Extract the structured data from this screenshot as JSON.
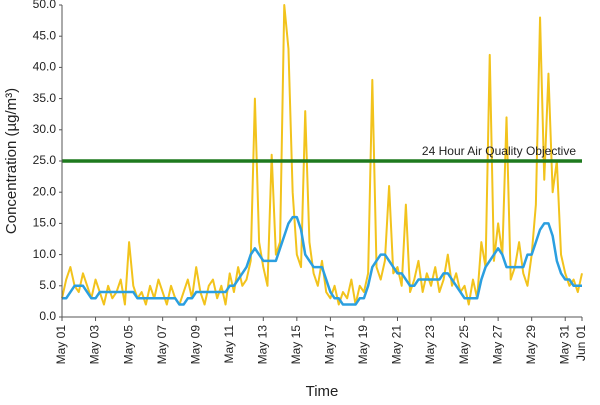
{
  "chart_data": {
    "type": "line",
    "xlabel": "Time",
    "ylabel": "Concentration (µg/m³)",
    "x": [
      0,
      0.25,
      0.5,
      0.75,
      1,
      1.25,
      1.5,
      1.75,
      2,
      2.25,
      2.5,
      2.75,
      3,
      3.25,
      3.5,
      3.75,
      4,
      4.25,
      4.5,
      4.75,
      5,
      5.25,
      5.5,
      5.75,
      6,
      6.25,
      6.5,
      6.75,
      7,
      7.25,
      7.5,
      7.75,
      8,
      8.25,
      8.5,
      8.75,
      9,
      9.25,
      9.5,
      9.75,
      10,
      10.25,
      10.5,
      10.75,
      11,
      11.25,
      11.5,
      11.75,
      12,
      12.25,
      12.5,
      12.75,
      13,
      13.25,
      13.5,
      13.75,
      14,
      14.25,
      14.5,
      14.75,
      15,
      15.25,
      15.5,
      15.75,
      16,
      16.25,
      16.5,
      16.75,
      17,
      17.25,
      17.5,
      17.75,
      18,
      18.25,
      18.5,
      18.75,
      19,
      19.25,
      19.5,
      19.75,
      20,
      20.25,
      20.5,
      20.75,
      21,
      21.25,
      21.5,
      21.75,
      22,
      22.25,
      22.5,
      22.75,
      23,
      23.25,
      23.5,
      23.75,
      24,
      24.25,
      24.5,
      24.75,
      25,
      25.25,
      25.5,
      25.75,
      26,
      26.25,
      26.5,
      26.75,
      27,
      27.25,
      27.5,
      27.75,
      28,
      28.25,
      28.5,
      28.75,
      29,
      29.25,
      29.5,
      29.75,
      30,
      30.25,
      30.5,
      30.75,
      31
    ],
    "series": [
      {
        "color": "#f2c31c",
        "values": [
          3,
          6,
          8,
          5,
          4,
          7,
          5,
          3,
          6,
          4,
          2,
          5,
          3,
          4,
          6,
          2,
          12,
          5,
          3,
          4,
          2,
          5,
          3,
          6,
          4,
          2,
          5,
          3,
          2,
          4,
          6,
          3,
          8,
          4,
          2,
          5,
          6,
          3,
          5,
          2,
          7,
          4,
          8,
          5,
          6,
          9,
          35,
          12,
          8,
          5,
          26,
          10,
          12,
          50,
          43,
          20,
          10,
          8,
          33,
          12,
          7,
          5,
          9,
          4,
          3,
          5,
          2,
          4,
          3,
          6,
          2,
          5,
          4,
          7,
          38,
          8,
          6,
          9,
          21,
          7,
          8,
          5,
          18,
          4,
          6,
          9,
          4,
          7,
          5,
          8,
          4,
          6,
          10,
          5,
          7,
          4,
          5,
          2,
          6,
          3,
          12,
          8,
          42,
          9,
          15,
          10,
          32,
          6,
          8,
          12,
          7,
          5,
          10,
          18,
          48,
          22,
          39,
          20,
          25,
          10,
          7,
          5,
          6,
          4,
          7
        ]
      },
      {
        "color": "#2b9fe0",
        "values": [
          3,
          3,
          4,
          5,
          5,
          5,
          4,
          3,
          3,
          4,
          4,
          4,
          4,
          4,
          4,
          4,
          4,
          4,
          3,
          3,
          3,
          3,
          3,
          3,
          3,
          3,
          3,
          3,
          2,
          2,
          3,
          3,
          4,
          4,
          4,
          4,
          4,
          4,
          4,
          4,
          5,
          5,
          6,
          7,
          8,
          10,
          11,
          10,
          9,
          9,
          9,
          9,
          11,
          13,
          15,
          16,
          16,
          14,
          10,
          9,
          8,
          8,
          8,
          6,
          4,
          3,
          3,
          2,
          2,
          2,
          2,
          3,
          3,
          5,
          8,
          9,
          10,
          10,
          9,
          8,
          7,
          7,
          6,
          5,
          5,
          6,
          6,
          6,
          6,
          6,
          6,
          7,
          7,
          6,
          5,
          4,
          3,
          3,
          3,
          3,
          6,
          8,
          9,
          10,
          11,
          10,
          8,
          8,
          8,
          8,
          8,
          10,
          10,
          12,
          14,
          15,
          15,
          13,
          9,
          7,
          6,
          6,
          5,
          5,
          5
        ]
      }
    ],
    "objective": {
      "value": 25,
      "label": "24 Hour Air Quality Objective",
      "color": "#1e7a1e"
    },
    "xlim": [
      0,
      31
    ],
    "xticks": [
      {
        "value": 0,
        "label": "May 01"
      },
      {
        "value": 2,
        "label": "May 03"
      },
      {
        "value": 4,
        "label": "May 05"
      },
      {
        "value": 6,
        "label": "May 07"
      },
      {
        "value": 8,
        "label": "May 09"
      },
      {
        "value": 10,
        "label": "May 11"
      },
      {
        "value": 12,
        "label": "May 13"
      },
      {
        "value": 14,
        "label": "May 15"
      },
      {
        "value": 16,
        "label": "May 17"
      },
      {
        "value": 18,
        "label": "May 19"
      },
      {
        "value": 20,
        "label": "May 21"
      },
      {
        "value": 22,
        "label": "May 23"
      },
      {
        "value": 24,
        "label": "May 25"
      },
      {
        "value": 26,
        "label": "May 27"
      },
      {
        "value": 28,
        "label": "May 29"
      },
      {
        "value": 30,
        "label": "May 31"
      },
      {
        "value": 31,
        "label": "Jun 01"
      }
    ],
    "ylim": [
      0,
      50
    ],
    "yticks": [
      {
        "value": 0,
        "label": "0.0"
      },
      {
        "value": 5,
        "label": "5.0"
      },
      {
        "value": 10,
        "label": "10.0"
      },
      {
        "value": 15,
        "label": "15.0"
      },
      {
        "value": 20,
        "label": "20.0"
      },
      {
        "value": 25,
        "label": "25.0"
      },
      {
        "value": 30,
        "label": "30.0"
      },
      {
        "value": 35,
        "label": "35.0"
      },
      {
        "value": 40,
        "label": "40.0"
      },
      {
        "value": 45,
        "label": "45.0"
      },
      {
        "value": 50,
        "label": "50.0"
      }
    ]
  }
}
